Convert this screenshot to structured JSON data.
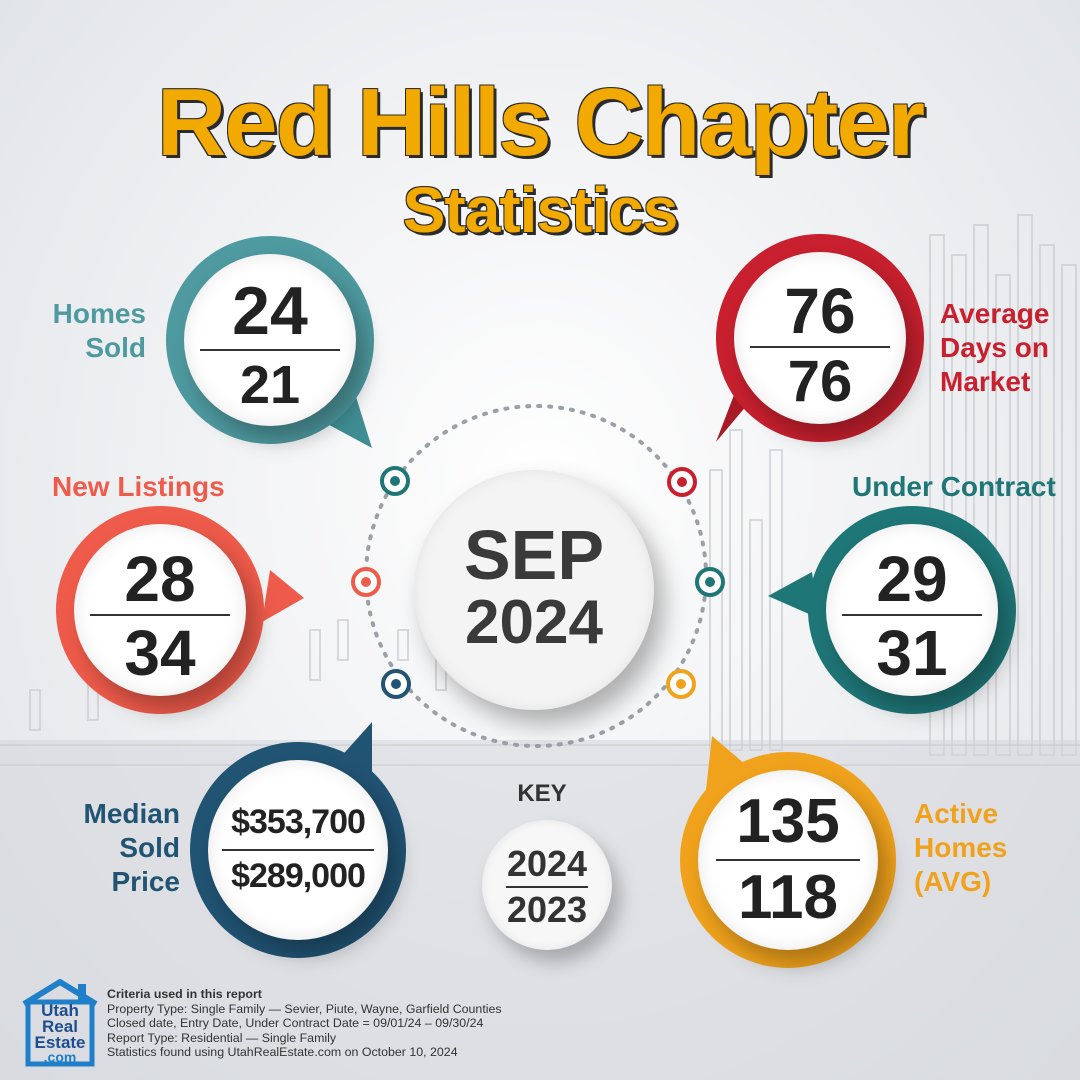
{
  "title": {
    "main": "Red Hills Chapter",
    "sub": "Statistics"
  },
  "period": {
    "month": "SEP",
    "year": "2024"
  },
  "colors": {
    "accent_gold": "#f2a900",
    "teal": "#4e9aa0",
    "red": "#c8202e",
    "coral": "#ef5b4a",
    "dark_teal": "#1f7677",
    "navy": "#215373",
    "orange": "#f0a21c"
  },
  "stats": {
    "homes_sold": {
      "label": "Homes Sold",
      "current": "24",
      "previous": "21",
      "color": "#4e9aa0"
    },
    "avg_days": {
      "label": "Average Days on Market",
      "current": "76",
      "previous": "76",
      "color": "#c8202e"
    },
    "new_listings": {
      "label": "New Listings",
      "current": "28",
      "previous": "34",
      "color": "#ef5b4a"
    },
    "under_contract": {
      "label": "Under Contract",
      "current": "29",
      "previous": "31",
      "color": "#1f7677"
    },
    "median_price": {
      "label": "Median Sold Price",
      "current": "$353,700",
      "previous": "$289,000",
      "color": "#215373"
    },
    "active_homes": {
      "label": "Active Homes (AVG)",
      "current": "135",
      "previous": "118",
      "color": "#f0a21c"
    }
  },
  "key": {
    "label": "KEY",
    "current": "2024",
    "previous": "2023"
  },
  "logo": {
    "line1": "Utah",
    "line2": "Real",
    "line3": "Estate",
    "line4": ".com"
  },
  "criteria": {
    "heading": "Criteria used in this report",
    "line1": "Property Type: Single Family — Sevier, Piute, Wayne, Garfield Counties",
    "line2": "Closed date, Entry Date, Under Contract Date = 09/01/24 – 09/30/24",
    "line3": "Report Type: Residential — Single Family",
    "line4": "Statistics found using UtahRealEstate.com on October 10, 2024"
  }
}
